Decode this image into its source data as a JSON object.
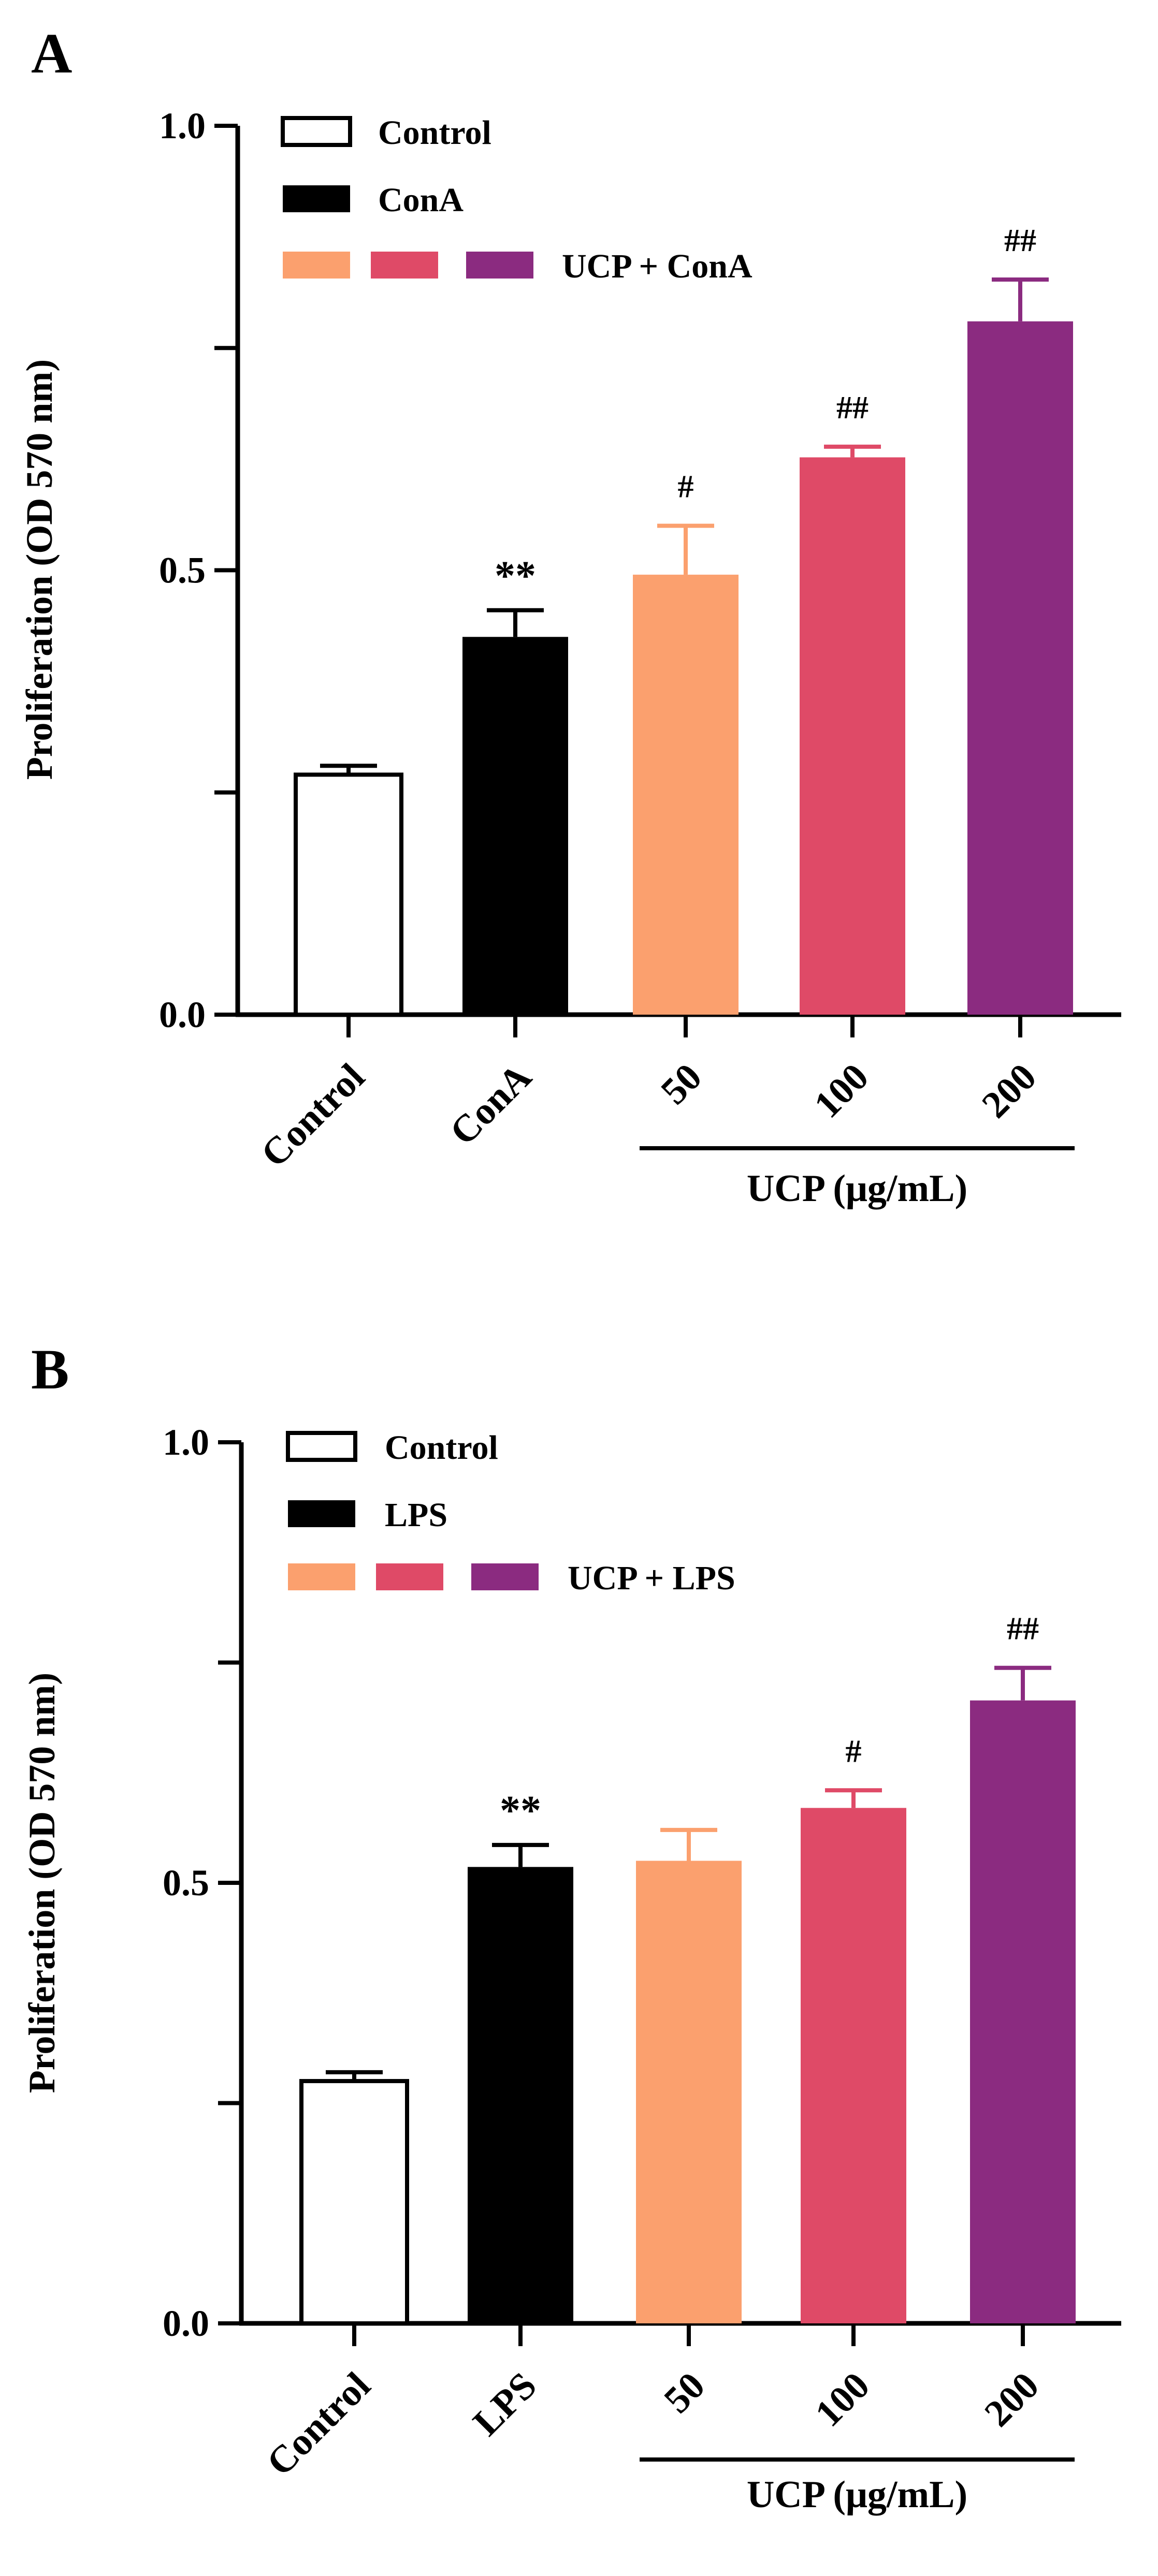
{
  "chart_data": [
    {
      "panel_label": "A",
      "type": "bar",
      "categories": [
        "Control",
        "ConA",
        "50",
        "100",
        "200"
      ],
      "values": [
        0.27,
        0.425,
        0.495,
        0.627,
        0.78
      ],
      "errors": [
        0.01,
        0.03,
        0.055,
        0.012,
        0.047
      ],
      "significance": [
        "",
        "**",
        "#",
        "##",
        "##"
      ],
      "colors": [
        "#ffffff",
        "#000000",
        "#fba06e",
        "#df4a67",
        "#8b2b80"
      ],
      "ylabel": "Proliferation (OD 570 nm)",
      "ylim": [
        0,
        1.0
      ],
      "yticks": [
        0.0,
        0.25,
        0.5,
        0.75,
        1.0
      ],
      "ytick_labels": [
        "0.0",
        "",
        "0.5",
        "",
        "1.0"
      ],
      "group_label": "UCP (μg/mL)",
      "legend": {
        "placement": "top-left",
        "entries": [
          {
            "label": "Control",
            "colors": [
              "#ffffff"
            ]
          },
          {
            "label": "ConA",
            "colors": [
              "#000000"
            ]
          },
          {
            "label": "UCP + ConA",
            "colors": [
              "#fba06e",
              "#df4a67",
              "#8b2b80"
            ]
          }
        ]
      }
    },
    {
      "panel_label": "B",
      "type": "bar",
      "categories": [
        "Control",
        "LPS",
        "50",
        "100",
        "200"
      ],
      "values": [
        0.275,
        0.518,
        0.525,
        0.585,
        0.707
      ],
      "errors": [
        0.01,
        0.025,
        0.035,
        0.02,
        0.037
      ],
      "significance": [
        "",
        "**",
        "",
        "#",
        "##"
      ],
      "colors": [
        "#ffffff",
        "#000000",
        "#fba06e",
        "#df4a67",
        "#8b2b80"
      ],
      "ylabel": "Proliferation (OD 570 nm)",
      "ylim": [
        0,
        1.0
      ],
      "yticks": [
        0.0,
        0.25,
        0.5,
        0.75,
        1.0
      ],
      "ytick_labels": [
        "0.0",
        "",
        "0.5",
        "",
        "1.0"
      ],
      "group_label": "UCP (μg/mL)",
      "legend": {
        "placement": "top-left",
        "entries": [
          {
            "label": "Control",
            "colors": [
              "#ffffff"
            ]
          },
          {
            "label": "LPS",
            "colors": [
              "#000000"
            ]
          },
          {
            "label": "UCP + LPS",
            "colors": [
              "#fba06e",
              "#df4a67",
              "#8b2b80"
            ]
          }
        ]
      }
    }
  ]
}
